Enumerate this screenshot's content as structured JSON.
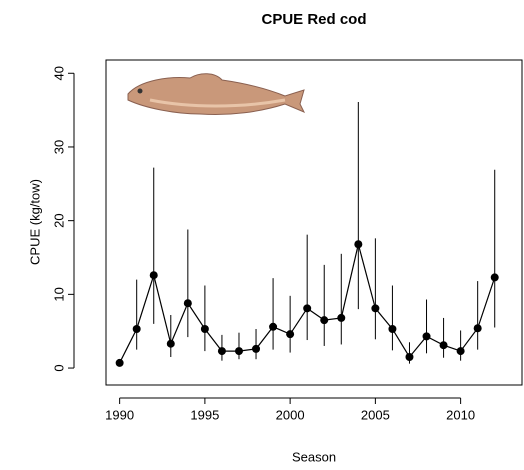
{
  "chart_data": {
    "type": "line",
    "title": "CPUE Red cod",
    "x_label": "Season",
    "y_label": "CPUE (kg/tow)",
    "x": [
      1990,
      1991,
      1992,
      1993,
      1994,
      1995,
      1996,
      1997,
      1998,
      1999,
      2000,
      2001,
      2002,
      2003,
      2004,
      2005,
      2006,
      2007,
      2008,
      2009,
      2010,
      2011,
      2012
    ],
    "values": [
      0.7,
      5.3,
      12.6,
      3.3,
      8.8,
      5.3,
      2.3,
      2.3,
      2.6,
      5.6,
      4.6,
      8.1,
      6.5,
      6.8,
      16.8,
      8.1,
      5.3,
      1.5,
      4.3,
      3.1,
      2.3,
      5.4,
      12.3
    ],
    "lower": [
      0.5,
      2.5,
      6,
      1.5,
      4.2,
      2.3,
      1,
      1.2,
      1.2,
      2.5,
      2.1,
      3.8,
      3,
      3.2,
      8,
      3.9,
      2.4,
      0.6,
      2,
      1.4,
      1,
      2.5,
      5.5
    ],
    "upper": [
      0.9,
      12,
      27.2,
      7.2,
      18.8,
      11.2,
      4.5,
      4.8,
      5.3,
      12.2,
      9.8,
      18.1,
      14,
      15.5,
      36.1,
      17.6,
      11.2,
      3.5,
      9.3,
      6.8,
      5.1,
      11.8,
      26.9
    ],
    "color": "#000000",
    "xlim": [
      1989.2,
      2013.6
    ],
    "ylim": [
      -2.3,
      41.8
    ],
    "xticks": [
      1990,
      1995,
      2000,
      2005,
      2010
    ],
    "yticks": [
      0,
      10,
      20,
      30,
      40
    ]
  }
}
